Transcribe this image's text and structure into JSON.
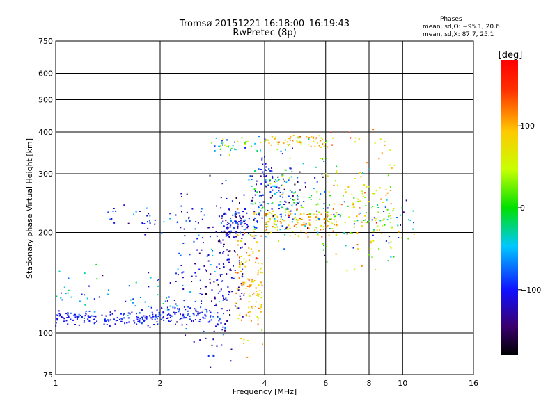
{
  "header": {
    "title_line1": "Tromsø 20151221 16:18:00–16:19:43",
    "title_line2": "RwPretec (8p)",
    "stats_heading": "Phases",
    "stats_o": "mean, sd,O: −95.1, 20.6",
    "stats_x": "mean, sd,X:  87.7, 25.1"
  },
  "colorbar": {
    "unit_label": "[deg]",
    "range": [
      -180,
      180
    ],
    "ticks": [
      {
        "value": 100,
        "label": "100"
      },
      {
        "value": 0,
        "label": "0"
      },
      {
        "value": -100,
        "label": "−100"
      }
    ]
  },
  "chart_data": {
    "type": "scatter",
    "title": "Tromsø 20151221 16:18:00–16:19:43",
    "subtitle": "RwPretec (8p)",
    "xlabel": "Frequency [MHz]",
    "ylabel": "Stationary phase Virtual Height [km]",
    "x_scale": "log",
    "y_scale": "log",
    "xlim": [
      1,
      16
    ],
    "ylim": [
      75,
      750
    ],
    "x_ticks": [
      1,
      2,
      4,
      6,
      8,
      10,
      16
    ],
    "x_tick_labels": [
      "1",
      "2",
      "4",
      "6",
      "8",
      "10",
      "16"
    ],
    "y_ticks": [
      75,
      100,
      200,
      300,
      400,
      500,
      600,
      750
    ],
    "y_tick_labels": [
      "75",
      "100",
      "200",
      "300",
      "400",
      "500",
      "600",
      "750"
    ],
    "grid": true,
    "color_by": "phase [deg]",
    "clusters": [
      {
        "x_range": [
          1.0,
          2.0
        ],
        "y_center": 111,
        "y_spread": 0.025,
        "phase_mean": -100,
        "phase_sd": 10,
        "count": 150
      },
      {
        "x_range": [
          2.0,
          3.0
        ],
        "y_center": 114,
        "y_spread": 0.035,
        "phase_mean": -100,
        "phase_sd": 12,
        "count": 90
      },
      {
        "x_range": [
          1.0,
          2.2
        ],
        "y_center": 125,
        "y_spread": 0.1,
        "phase_mean": -70,
        "phase_sd": 40,
        "count": 60
      },
      {
        "x_range": [
          2.2,
          3.2
        ],
        "y_center": 150,
        "y_spread": 0.25,
        "phase_mean": -110,
        "phase_sd": 30,
        "count": 140
      },
      {
        "x_range": [
          2.9,
          3.5
        ],
        "y_center": 165,
        "y_spread": 0.3,
        "phase_mean": -120,
        "phase_sd": 20,
        "count": 110
      },
      {
        "x_range": [
          3.3,
          3.95
        ],
        "y_center": 150,
        "y_spread": 0.22,
        "phase_mean": 95,
        "phase_sd": 25,
        "count": 130
      },
      {
        "x_range": [
          3.0,
          3.9
        ],
        "y_center": 215,
        "y_spread": 0.05,
        "phase_mean": -100,
        "phase_sd": 20,
        "count": 80
      },
      {
        "x_range": [
          1.4,
          2.7
        ],
        "y_center": 222,
        "y_spread": 0.06,
        "phase_mean": -90,
        "phase_sd": 25,
        "count": 40
      },
      {
        "x_range": [
          3.6,
          5.0
        ],
        "y_center": 245,
        "y_spread": 0.12,
        "phase_mean": -80,
        "phase_sd": 50,
        "count": 120
      },
      {
        "x_range": [
          4.0,
          6.5
        ],
        "y_center": 215,
        "y_spread": 0.05,
        "phase_mean": 90,
        "phase_sd": 30,
        "count": 120
      },
      {
        "x_range": [
          4.0,
          6.0
        ],
        "y_center": 375,
        "y_spread": 0.025,
        "phase_mean": 90,
        "phase_sd": 35,
        "count": 60
      },
      {
        "x_range": [
          2.8,
          4.0
        ],
        "y_center": 370,
        "y_spread": 0.03,
        "phase_mean": -20,
        "phase_sd": 60,
        "count": 40
      },
      {
        "x_range": [
          4.0,
          6.0
        ],
        "y_center": 260,
        "y_spread": 0.15,
        "phase_mean": -40,
        "phase_sd": 80,
        "count": 100
      },
      {
        "x_range": [
          6.0,
          9.5
        ],
        "y_center": 240,
        "y_spread": 0.18,
        "phase_mean": 60,
        "phase_sd": 50,
        "count": 140
      },
      {
        "x_range": [
          5.8,
          11.0
        ],
        "y_center": 205,
        "y_spread": 0.1,
        "phase_mean": -30,
        "phase_sd": 80,
        "count": 60
      },
      {
        "x_range": [
          6.0,
          9.0
        ],
        "y_center": 380,
        "y_spread": 0.03,
        "phase_mean": 90,
        "phase_sd": 40,
        "count": 15
      },
      {
        "x_range": [
          3.9,
          4.2
        ],
        "y_center": 300,
        "y_spread": 0.08,
        "phase_mean": -110,
        "phase_sd": 15,
        "count": 25
      }
    ]
  }
}
